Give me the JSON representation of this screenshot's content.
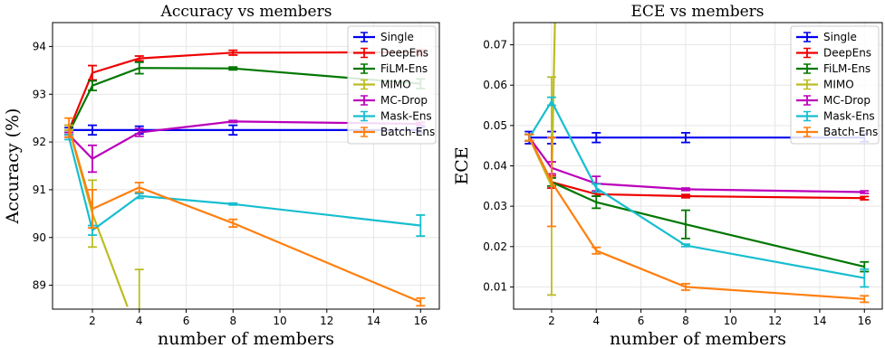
{
  "chart_data": [
    {
      "type": "line",
      "title": "Accuracy vs members",
      "xlabel": "number of members",
      "ylabel": "Accuracy (%)",
      "xlim": [
        0.3,
        16.8
      ],
      "ylim": [
        88.5,
        94.5
      ],
      "xticks": [
        2,
        4,
        6,
        8,
        10,
        12,
        14,
        16
      ],
      "yticks": [
        89,
        90,
        91,
        92,
        93,
        94
      ],
      "grid": true,
      "legend": "top-right",
      "series": [
        {
          "name": "Single",
          "color": "#0000ee",
          "x": [
            1,
            2,
            4,
            8,
            16
          ],
          "y": [
            92.25,
            92.25,
            92.25,
            92.25,
            92.25
          ],
          "err": [
            0.05,
            0.1,
            0.08,
            0.1,
            0.06
          ]
        },
        {
          "name": "DeepEns",
          "color": "#ee0000",
          "x": [
            1,
            2,
            4,
            8,
            16
          ],
          "y": [
            92.25,
            93.45,
            93.75,
            93.87,
            93.88
          ],
          "err": [
            0.1,
            0.15,
            0.05,
            0.05,
            0.05
          ]
        },
        {
          "name": "FiLM-Ens",
          "color": "#007700",
          "x": [
            1,
            2,
            4,
            8,
            16
          ],
          "y": [
            92.2,
            93.18,
            93.55,
            93.54,
            93.22
          ],
          "err": [
            0.05,
            0.1,
            0.12,
            0.03,
            0.1
          ]
        },
        {
          "name": "MIMO",
          "color": "#bcbd22",
          "x": [
            1,
            2,
            3.5
          ],
          "y": [
            92.3,
            90.5,
            88.55
          ],
          "err": [
            0.05,
            0.7,
            0.0
          ]
        },
        {
          "name": "MC-Drop",
          "color": "#bb00bb",
          "x": [
            1,
            2,
            4,
            8,
            16
          ],
          "y": [
            92.15,
            91.65,
            92.2,
            92.43,
            92.38
          ],
          "err": [
            0.05,
            0.28,
            0.08,
            0.02,
            0.03
          ]
        },
        {
          "name": "Mask-Ens",
          "color": "#17becf",
          "x": [
            1,
            2,
            4,
            8,
            16
          ],
          "y": [
            92.1,
            90.15,
            90.87,
            90.7,
            90.25
          ],
          "err": [
            0.05,
            0.1,
            0.05,
            0.02,
            0.22
          ]
        },
        {
          "name": "Batch-Ens",
          "color": "#ff7f0e",
          "x": [
            1,
            2,
            4,
            8,
            16
          ],
          "y": [
            92.3,
            90.6,
            91.05,
            90.3,
            88.65
          ],
          "err": [
            0.2,
            0.4,
            0.1,
            0.08,
            0.08
          ]
        }
      ],
      "extra_errorbars": [
        {
          "series": "MIMO",
          "x": 4,
          "low": 88.5,
          "high": 89.33
        }
      ]
    },
    {
      "type": "line",
      "title": "ECE vs members",
      "xlabel": "number of members",
      "ylabel": "ECE",
      "xlim": [
        0.3,
        16.8
      ],
      "ylim": [
        0.0045,
        0.0755
      ],
      "xticks": [
        2,
        4,
        6,
        8,
        10,
        12,
        14,
        16
      ],
      "yticks": [
        0.01,
        0.02,
        0.03,
        0.04,
        0.05,
        0.06,
        0.07
      ],
      "grid": true,
      "legend": "top-right",
      "series": [
        {
          "name": "Single",
          "color": "#0000ee",
          "x": [
            1,
            2,
            4,
            8,
            16
          ],
          "y": [
            0.047,
            0.047,
            0.047,
            0.047,
            0.047
          ],
          "err": [
            0.0015,
            0.0015,
            0.0012,
            0.0012,
            0.001
          ]
        },
        {
          "name": "DeepEns",
          "color": "#ee0000",
          "x": [
            1,
            2,
            4,
            8,
            16
          ],
          "y": [
            0.047,
            0.036,
            0.033,
            0.0325,
            0.032
          ],
          "err": [
            0.0008,
            0.0015,
            0.0005,
            0.0004,
            0.0004
          ]
        },
        {
          "name": "FiLM-Ens",
          "color": "#007700",
          "x": [
            1,
            2,
            4,
            8,
            16
          ],
          "y": [
            0.047,
            0.036,
            0.031,
            0.0255,
            0.015
          ],
          "err": [
            0.0008,
            0.001,
            0.0015,
            0.0035,
            0.0012
          ]
        },
        {
          "name": "MIMO",
          "color": "#bcbd22",
          "x": [
            1,
            2,
            2.15
          ],
          "y": [
            0.047,
            0.035,
            0.0755
          ],
          "err": [
            0.0008,
            0.027,
            0.0
          ]
        },
        {
          "name": "MC-Drop",
          "color": "#bb00bb",
          "x": [
            1,
            2,
            4,
            8,
            16
          ],
          "y": [
            0.047,
            0.0395,
            0.0356,
            0.0342,
            0.0335
          ],
          "err": [
            0.0008,
            0.0015,
            0.0018,
            0.0003,
            0.0003
          ]
        },
        {
          "name": "Mask-Ens",
          "color": "#17becf",
          "x": [
            1,
            2,
            4,
            8,
            16
          ],
          "y": [
            0.047,
            0.056,
            0.0345,
            0.0203,
            0.0122
          ],
          "err": [
            0.0008,
            0.001,
            0.001,
            0.0003,
            0.0022
          ]
        },
        {
          "name": "Batch-Ens",
          "color": "#ff7f0e",
          "x": [
            1,
            2,
            4,
            8,
            16
          ],
          "y": [
            0.047,
            0.036,
            0.019,
            0.01,
            0.007
          ],
          "err": [
            0.0008,
            0.011,
            0.0008,
            0.0008,
            0.0008
          ]
        }
      ],
      "extra_errorbars": []
    }
  ]
}
